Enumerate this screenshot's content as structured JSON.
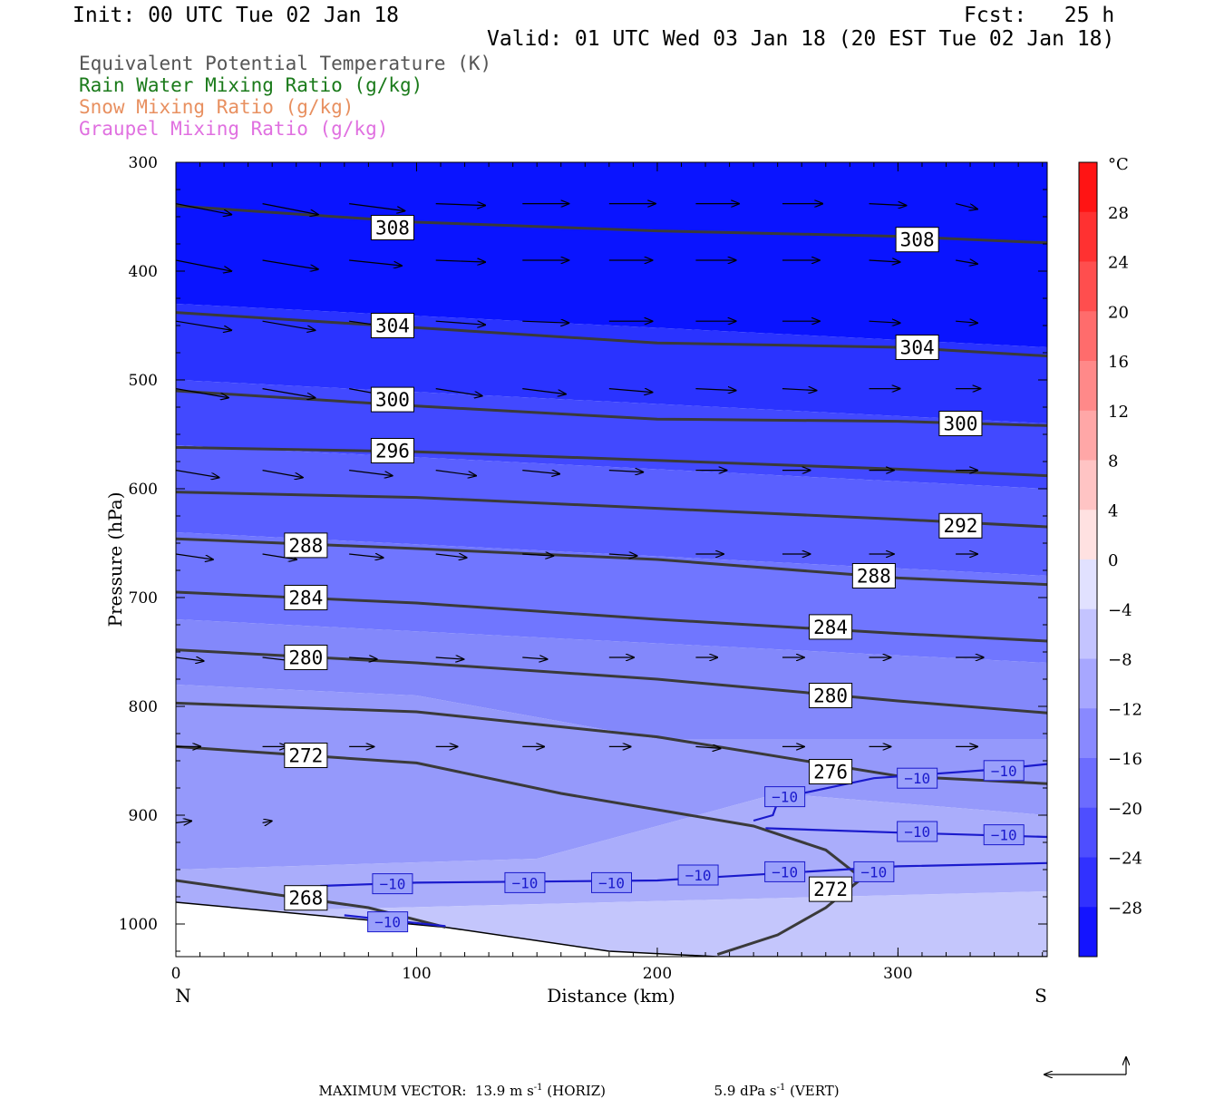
{
  "header": {
    "init": "Init: 00 UTC Tue 02 Jan 18",
    "fcst": "Fcst:   25 h",
    "valid": "Valid: 01 UTC Wed 03 Jan 18 (20 EST Tue 02 Jan 18)"
  },
  "legend": [
    {
      "text": "Equivalent Potential Temperature (K)",
      "color": "#555555"
    },
    {
      "text": "Rain Water Mixing Ratio (g/kg)",
      "color": "#1a7a1a"
    },
    {
      "text": "Snow Mixing Ratio (g/kg)",
      "color": "#e89060"
    },
    {
      "text": "Graupel Mixing Ratio (g/kg)",
      "color": "#e070e0"
    }
  ],
  "chart_data": {
    "type": "contour-cross-section",
    "xlabel": "Distance (km)",
    "ylabel": "Pressure (hPa)",
    "xlim": [
      0,
      362
    ],
    "ylim": [
      300,
      1030
    ],
    "xticks": [
      0,
      100,
      200,
      300
    ],
    "yticks": [
      300,
      400,
      500,
      600,
      700,
      800,
      900,
      1000
    ],
    "x_end_labels": {
      "left": "N",
      "right": "S"
    },
    "colorbar": {
      "unit": "°C",
      "labels": [
        28,
        24,
        20,
        16,
        12,
        8,
        4,
        0,
        -4,
        -8,
        -12,
        -16,
        -20,
        -24,
        -28
      ],
      "range": [
        -32,
        32
      ],
      "step": 4
    },
    "theta_e_contours": [
      {
        "level": 308,
        "pts": [
          [
            0,
            340
          ],
          [
            100,
            355
          ],
          [
            200,
            363
          ],
          [
            300,
            368
          ],
          [
            362,
            374
          ]
        ],
        "labels": [
          [
            90,
            360
          ],
          [
            308,
            371
          ]
        ]
      },
      {
        "level": 304,
        "pts": [
          [
            0,
            438
          ],
          [
            100,
            452
          ],
          [
            200,
            466
          ],
          [
            300,
            470
          ],
          [
            362,
            478
          ]
        ],
        "labels": [
          [
            90,
            450
          ],
          [
            308,
            470
          ]
        ]
      },
      {
        "level": 300,
        "pts": [
          [
            0,
            510
          ],
          [
            100,
            524
          ],
          [
            200,
            536
          ],
          [
            300,
            538
          ],
          [
            362,
            542
          ]
        ],
        "labels": [
          [
            90,
            518
          ],
          [
            326,
            540
          ]
        ]
      },
      {
        "level": 296,
        "pts": [
          [
            0,
            562
          ],
          [
            100,
            566
          ],
          [
            200,
            574
          ],
          [
            300,
            582
          ],
          [
            362,
            588
          ]
        ],
        "labels": [
          [
            90,
            565
          ]
        ]
      },
      {
        "level": 292,
        "pts": [
          [
            0,
            603
          ],
          [
            100,
            608
          ],
          [
            200,
            618
          ],
          [
            300,
            628
          ],
          [
            362,
            635
          ]
        ],
        "labels": [
          [
            326,
            634
          ]
        ]
      },
      {
        "level": 288,
        "pts": [
          [
            0,
            646
          ],
          [
            100,
            655
          ],
          [
            200,
            665
          ],
          [
            300,
            682
          ],
          [
            362,
            688
          ]
        ],
        "labels": [
          [
            54,
            652
          ],
          [
            290,
            680
          ]
        ]
      },
      {
        "level": 284,
        "pts": [
          [
            0,
            695
          ],
          [
            100,
            705
          ],
          [
            200,
            720
          ],
          [
            300,
            733
          ],
          [
            362,
            740
          ]
        ],
        "labels": [
          [
            54,
            700
          ],
          [
            272,
            727
          ]
        ]
      },
      {
        "level": 280,
        "pts": [
          [
            0,
            748
          ],
          [
            100,
            760
          ],
          [
            200,
            775
          ],
          [
            300,
            795
          ],
          [
            362,
            806
          ]
        ],
        "labels": [
          [
            54,
            755
          ],
          [
            272,
            790
          ]
        ]
      },
      {
        "level": 276,
        "pts": [
          [
            0,
            797
          ],
          [
            100,
            805
          ],
          [
            200,
            828
          ],
          [
            300,
            864
          ],
          [
            362,
            871
          ]
        ],
        "labels": [
          [
            272,
            860
          ]
        ]
      },
      {
        "level": 272,
        "pts": [
          [
            0,
            837
          ],
          [
            100,
            852
          ],
          [
            160,
            880
          ],
          [
            240,
            910
          ],
          [
            270,
            932
          ],
          [
            285,
            958
          ],
          [
            270,
            985
          ],
          [
            250,
            1010
          ],
          [
            225,
            1028
          ]
        ],
        "labels": [
          [
            54,
            845
          ],
          [
            272,
            968
          ]
        ]
      },
      {
        "level": 268,
        "pts": [
          [
            0,
            960
          ],
          [
            80,
            985
          ],
          [
            112,
            1003
          ]
        ],
        "labels": [
          [
            54,
            976
          ]
        ]
      }
    ],
    "temperature_contours_C": [
      {
        "level": -10,
        "pts": [
          [
            60,
            965
          ],
          [
            100,
            962
          ],
          [
            200,
            960
          ],
          [
            300,
            947
          ],
          [
            362,
            944
          ]
        ],
        "labels": [
          [
            90,
            963
          ],
          [
            145,
            962
          ],
          [
            181,
            962
          ],
          [
            217,
            955
          ],
          [
            253,
            952
          ],
          [
            290,
            952
          ]
        ]
      },
      {
        "level": -10,
        "pts": [
          [
            240,
            905
          ],
          [
            248,
            900
          ],
          [
            250,
            888
          ],
          [
            260,
            880
          ],
          [
            290,
            866
          ],
          [
            340,
            858
          ],
          [
            362,
            853
          ]
        ],
        "labels": [
          [
            253,
            883
          ],
          [
            308,
            866
          ],
          [
            344,
            859
          ]
        ]
      },
      {
        "level": -10,
        "pts": [
          [
            245,
            912
          ],
          [
            300,
            916
          ],
          [
            362,
            920
          ]
        ],
        "labels": [
          [
            308,
            915
          ],
          [
            344,
            918
          ]
        ]
      },
      {
        "level": -10,
        "pts": [
          [
            70,
            992
          ],
          [
            112,
            1002
          ]
        ],
        "labels": [
          [
            88,
            998
          ]
        ]
      }
    ],
    "vectors": [
      {
        "p": 338,
        "x": [
          0,
          36,
          72,
          108,
          144,
          180,
          216,
          252,
          288,
          324
        ],
        "dx": [
          36,
          36,
          36,
          32,
          30,
          30,
          28,
          26,
          24,
          14
        ],
        "dy": [
          12,
          12,
          8,
          2,
          0,
          0,
          0,
          0,
          2,
          6
        ]
      },
      {
        "p": 390,
        "x": [
          0,
          36,
          72,
          108,
          144,
          180,
          216,
          252,
          288,
          324
        ],
        "dx": [
          36,
          36,
          34,
          32,
          30,
          28,
          26,
          24,
          20,
          14
        ],
        "dy": [
          12,
          10,
          6,
          2,
          0,
          0,
          0,
          0,
          2,
          4
        ]
      },
      {
        "p": 446,
        "x": [
          0,
          36,
          72,
          108,
          144,
          180,
          216,
          252,
          288,
          324
        ],
        "dx": [
          36,
          34,
          34,
          32,
          30,
          28,
          26,
          24,
          20,
          14
        ],
        "dy": [
          10,
          10,
          8,
          4,
          2,
          0,
          0,
          0,
          2,
          2
        ]
      },
      {
        "p": 508,
        "x": [
          0,
          36,
          72,
          108,
          144,
          180,
          216,
          252,
          288,
          324
        ],
        "dx": [
          34,
          34,
          32,
          30,
          28,
          28,
          26,
          22,
          20,
          16
        ],
        "dy": [
          10,
          10,
          10,
          8,
          6,
          4,
          2,
          2,
          0,
          0
        ]
      },
      {
        "p": 583,
        "x": [
          0,
          36,
          72,
          108,
          144,
          180,
          216,
          252,
          288,
          324
        ],
        "dx": [
          28,
          26,
          28,
          26,
          24,
          22,
          20,
          18,
          16,
          14
        ],
        "dy": [
          8,
          8,
          6,
          6,
          4,
          2,
          0,
          0,
          0,
          0
        ]
      },
      {
        "p": 660,
        "x": [
          0,
          36,
          72,
          108,
          144,
          180,
          216,
          252,
          288,
          324
        ],
        "dx": [
          24,
          22,
          22,
          20,
          20,
          18,
          18,
          18,
          16,
          14
        ],
        "dy": [
          6,
          6,
          4,
          4,
          2,
          2,
          0,
          0,
          0,
          0
        ]
      },
      {
        "p": 755,
        "x": [
          0,
          36,
          72,
          108,
          144,
          180,
          216,
          252,
          288,
          324
        ],
        "dx": [
          18,
          20,
          18,
          18,
          16,
          16,
          14,
          14,
          14,
          18
        ],
        "dy": [
          4,
          4,
          2,
          2,
          2,
          0,
          0,
          0,
          0,
          0
        ]
      },
      {
        "p": 837,
        "x": [
          0,
          36,
          72,
          108,
          144,
          180,
          216,
          252,
          288,
          324
        ],
        "dx": [
          16,
          16,
          16,
          14,
          14,
          14,
          16,
          14,
          14,
          14
        ],
        "dy": [
          0,
          0,
          0,
          0,
          0,
          0,
          2,
          0,
          0,
          0
        ]
      },
      {
        "p": 907,
        "x": [
          0,
          36
        ],
        "dx": [
          10,
          6
        ],
        "dy": [
          -2,
          -2
        ]
      }
    ],
    "max_vector": {
      "text": "MAXIMUM VECTOR:  13.9 m s",
      "horiz_exp": "-1",
      "horiz_tag": " (HORIZ)",
      "vert_text": "5.9 dPa s",
      "vert_exp": "-1",
      "vert_tag": " (VERT)"
    }
  }
}
